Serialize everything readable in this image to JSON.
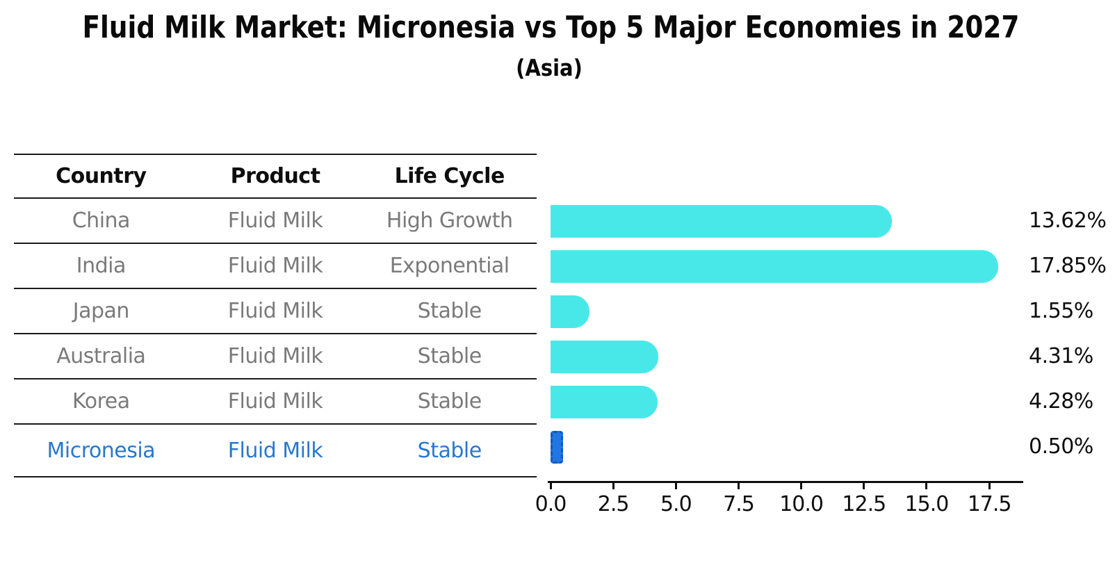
{
  "title": "Fluid Milk Market: Micronesia vs Top 5 Major Economies in 2027",
  "subtitle": "(Asia)",
  "table": {
    "headers": [
      "Country",
      "Product",
      "Life Cycle"
    ],
    "rows": [
      {
        "country": "China",
        "product": "Fluid Milk",
        "life_cycle": "High Growth",
        "highlight": false
      },
      {
        "country": "India",
        "product": "Fluid Milk",
        "life_cycle": "Exponential",
        "highlight": false
      },
      {
        "country": "Japan",
        "product": "Fluid Milk",
        "life_cycle": "Stable",
        "highlight": false
      },
      {
        "country": "Australia",
        "product": "Fluid Milk",
        "life_cycle": "Stable",
        "highlight": false
      },
      {
        "country": "Korea",
        "product": "Fluid Milk",
        "life_cycle": "Stable",
        "highlight": false
      },
      {
        "country": "Micronesia",
        "product": "Fluid Milk",
        "life_cycle": "Stable",
        "highlight": true
      }
    ]
  },
  "chart_data": {
    "type": "bar",
    "orientation": "horizontal",
    "title": "Fluid Milk Market: Micronesia vs Top 5 Major Economies in 2027",
    "subtitle": "(Asia)",
    "categories": [
      "China",
      "India",
      "Japan",
      "Australia",
      "Korea",
      "Micronesia"
    ],
    "values": [
      13.62,
      17.85,
      1.55,
      4.31,
      4.28,
      0.5
    ],
    "value_labels": [
      "13.62%",
      "17.85%",
      "1.55%",
      "4.31%",
      "4.28%",
      "0.50%"
    ],
    "highlight_index": 5,
    "x_ticks": [
      0.0,
      2.5,
      5.0,
      7.5,
      10.0,
      12.5,
      15.0,
      17.5
    ],
    "x_tick_labels": [
      "0.0",
      "2.5",
      "5.0",
      "7.5",
      "10.0",
      "12.5",
      "15.0",
      "17.5"
    ],
    "xlim": [
      0,
      18.8
    ],
    "grid": false,
    "legend": false,
    "bar_color": "#48e8e8",
    "highlight_bar_color": "#2176e3",
    "highlight_text_color": "#2878cd",
    "table_text_color": "#7a7a7a"
  }
}
